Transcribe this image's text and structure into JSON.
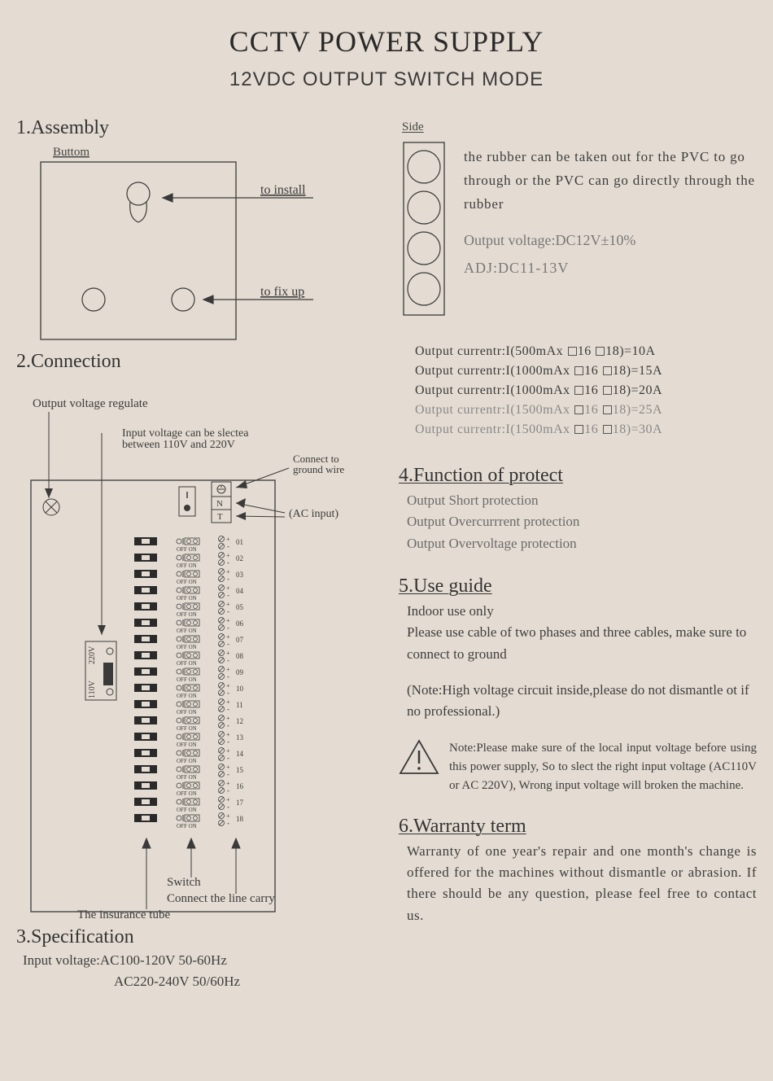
{
  "colors": {
    "paper": "#e4dcd2",
    "ink": "#3a3a3a",
    "muted": "#777777",
    "line": "#3a3a3a"
  },
  "title": "CCTV POWER SUPPLY",
  "subtitle": "12VDC  OUTPUT SWITCH MODE",
  "sections": {
    "assembly": {
      "heading": "1.Assembly"
    },
    "connection": {
      "heading": "2.Connection"
    },
    "specification": {
      "heading": "3.Specification"
    },
    "function": {
      "heading": "4.Function of protect"
    },
    "use": {
      "heading": "5.Use guide"
    },
    "warranty": {
      "heading": "6.Warranty term"
    }
  },
  "assembly": {
    "buttom_label": "Buttom",
    "side_label": "Side",
    "to_install": "to install",
    "to_fix_up": "to fix up"
  },
  "side_text1": "the rubber can be taken out for the PVC to go through or the PVC can go directly through the rubber",
  "side_text2a": "Output voltage:DC12V±10%",
  "side_text2b": "ADJ:DC11-13V",
  "connection": {
    "out_v_reg": "Output voltage regulate",
    "input_sel": "Input voltage can be slectea between 110V and 220V",
    "ground": "Connect to ground wire",
    "ac_input": "(AC input)",
    "v110": "110V",
    "v220": "220V",
    "off": "OFF",
    "on": "ON",
    "insurance": "The insurance tube",
    "switch": "Switch",
    "linecarry": "Connect the line carry"
  },
  "current_specs": [
    "Output currentr:I(500mAx □16 □18)=10A",
    "Output currentr:I(1000mAx □16 □18)=15A",
    "Output currentr:I(1000mAx □16 □18)=20A",
    "Output currentr:I(1500mAx □16 □18)=25A",
    "Output currentr:I(1500mAx □16 □18)=30A"
  ],
  "function_items": [
    "Output Short protection",
    "Output Overcurrrent protection",
    "Output Overvoltage protection"
  ],
  "use_guide": {
    "l1": "Indoor use only",
    "l2": "Please use cable of two phases and three cables, make sure to connect to ground",
    "l3": "(Note:High voltage circuit inside,please do not dismantle ot if no professional.)"
  },
  "warning_note": "Note:Please make sure of the local input voltage before using this power supply, So to slect the right input voltage (AC110V or AC 220V), Wrong input voltage will broken the machine.",
  "warranty_text": "Warranty of one year's repair and one month's change is offered for the machines without dismantle or abrasion. If there should be any question, please feel free to contact us.",
  "spec": {
    "l1": "Input voltage:AC100-120V  50-60Hz",
    "l2": "AC220-240V  50/60Hz"
  },
  "channel_count": 18
}
